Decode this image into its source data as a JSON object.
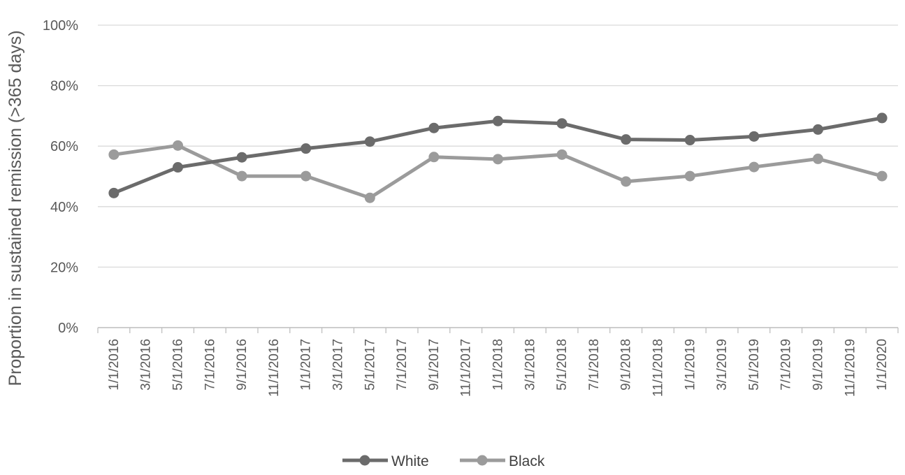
{
  "chart_data": {
    "type": "line",
    "title": "",
    "xlabel": "",
    "ylabel": "Proportion in sustained remission (>365 days)",
    "ylim": [
      0,
      100
    ],
    "yticks": [
      "0%",
      "20%",
      "40%",
      "60%",
      "80%",
      "100%"
    ],
    "categories": [
      "1/1/2016",
      "3/1/2016",
      "5/1/2016",
      "7/1/2016",
      "9/1/2016",
      "11/1/2016",
      "1/1/2017",
      "3/1/2017",
      "5/1/2017",
      "7/1/2017",
      "9/1/2017",
      "11/1/2017",
      "1/1/2018",
      "3/1/2018",
      "5/1/2018",
      "7/1/2018",
      "9/1/2018",
      "11/1/2018",
      "1/1/2019",
      "3/1/2019",
      "5/1/2019",
      "7/1/2019",
      "9/1/2019",
      "11/1/2019",
      "1/1/2020"
    ],
    "series": [
      {
        "name": "White",
        "color": "#6b6b6b",
        "x": [
          "1/1/2016",
          "5/1/2016",
          "9/1/2016",
          "1/1/2017",
          "5/1/2017",
          "9/1/2017",
          "1/1/2018",
          "5/1/2018",
          "9/1/2018",
          "1/1/2019",
          "5/1/2019",
          "9/1/2019",
          "1/1/2020"
        ],
        "values": [
          44.5,
          53,
          56.3,
          59.2,
          61.5,
          66,
          68.3,
          67.5,
          62.2,
          62,
          63.2,
          65.5,
          69.3
        ]
      },
      {
        "name": "Black",
        "color": "#9b9b9b",
        "x": [
          "1/1/2016",
          "5/1/2016",
          "9/1/2016",
          "1/1/2017",
          "5/1/2017",
          "9/1/2017",
          "1/1/2018",
          "5/1/2018",
          "9/1/2018",
          "1/1/2019",
          "5/1/2019",
          "9/1/2019",
          "1/1/2020"
        ],
        "values": [
          57.2,
          60.2,
          50.1,
          50.1,
          42.9,
          56.4,
          55.7,
          57.2,
          48.3,
          50.1,
          53.1,
          55.8,
          50.1
        ]
      }
    ],
    "grid": true,
    "legend": "bottom"
  }
}
